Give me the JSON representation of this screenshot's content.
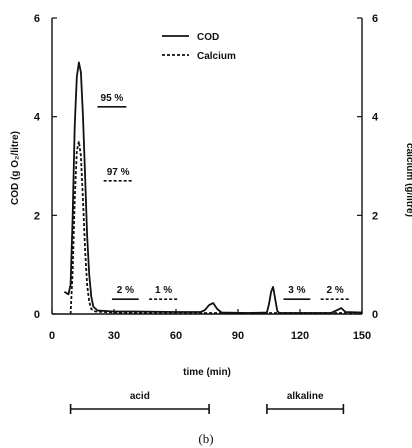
{
  "chart_data": {
    "type": "line",
    "xlabel": "time (min)",
    "ylabel_left": "COD (g O₂/litre)",
    "ylabel_right": "calcium (g/litre)",
    "xlim": [
      0,
      150
    ],
    "ylim_left": [
      0,
      6
    ],
    "ylim_right": [
      0,
      6
    ],
    "x_ticks": [
      "0",
      "30",
      "60",
      "90",
      "120",
      "150"
    ],
    "y_ticks_left": [
      "0",
      "2",
      "4",
      "6"
    ],
    "y_ticks_right": [
      "0",
      "2",
      "4",
      "6"
    ],
    "legend": {
      "position": "top-center"
    },
    "series": [
      {
        "name": "COD",
        "style": "solid",
        "color": "#111111",
        "points": [
          [
            6,
            0.45
          ],
          [
            8,
            0.4
          ],
          [
            9,
            0.6
          ],
          [
            10,
            2.0
          ],
          [
            11,
            3.8
          ],
          [
            12,
            4.8
          ],
          [
            13,
            5.1
          ],
          [
            14,
            4.9
          ],
          [
            15,
            4.0
          ],
          [
            16,
            2.8
          ],
          [
            17,
            1.6
          ],
          [
            18,
            0.8
          ],
          [
            19,
            0.35
          ],
          [
            20,
            0.15
          ],
          [
            22,
            0.07
          ],
          [
            30,
            0.05
          ],
          [
            40,
            0.05
          ],
          [
            60,
            0.04
          ],
          [
            72,
            0.04
          ],
          [
            74,
            0.08
          ],
          [
            76,
            0.18
          ],
          [
            78,
            0.22
          ],
          [
            80,
            0.1
          ],
          [
            82,
            0.03
          ],
          [
            95,
            0.02
          ],
          [
            104,
            0.03
          ],
          [
            105,
            0.2
          ],
          [
            106,
            0.45
          ],
          [
            107,
            0.55
          ],
          [
            108,
            0.3
          ],
          [
            109,
            0.06
          ],
          [
            110,
            0.02
          ],
          [
            135,
            0.02
          ],
          [
            138,
            0.08
          ],
          [
            140,
            0.12
          ],
          [
            142,
            0.04
          ],
          [
            150,
            0.03
          ]
        ]
      },
      {
        "name": "Calcium",
        "style": "dashed",
        "color": "#111111",
        "points": [
          [
            9,
            0.0
          ],
          [
            10,
            0.9
          ],
          [
            11,
            2.3
          ],
          [
            12,
            3.3
          ],
          [
            13,
            3.5
          ],
          [
            14,
            3.2
          ],
          [
            15,
            2.3
          ],
          [
            16,
            1.3
          ],
          [
            17,
            0.6
          ],
          [
            18,
            0.25
          ],
          [
            19,
            0.1
          ],
          [
            21,
            0.05
          ],
          [
            30,
            0.03
          ],
          [
            60,
            0.02
          ],
          [
            90,
            0.02
          ],
          [
            120,
            0.02
          ],
          [
            150,
            0.02
          ]
        ]
      }
    ],
    "annotations": [
      {
        "text": "95 %",
        "x1": 22,
        "x2": 36,
        "y": 4.2,
        "line_style": "solid"
      },
      {
        "text": "97 %",
        "x1": 25,
        "x2": 39,
        "y": 2.7,
        "line_style": "dashed"
      },
      {
        "text": "2 %",
        "x1": 29,
        "x2": 42,
        "y": 0.3,
        "line_style": "solid"
      },
      {
        "text": "1 %",
        "x1": 47,
        "x2": 61,
        "y": 0.3,
        "line_style": "dashed"
      },
      {
        "text": "3 %",
        "x1": 112,
        "x2": 125,
        "y": 0.3,
        "line_style": "solid"
      },
      {
        "text": "2 %",
        "x1": 130,
        "x2": 144,
        "y": 0.3,
        "line_style": "dashed"
      }
    ],
    "phases": [
      {
        "label": "acid",
        "x_start": 9,
        "x_end": 76
      },
      {
        "label": "alkaline",
        "x_start": 104,
        "x_end": 141
      }
    ]
  },
  "caption": "(b)"
}
